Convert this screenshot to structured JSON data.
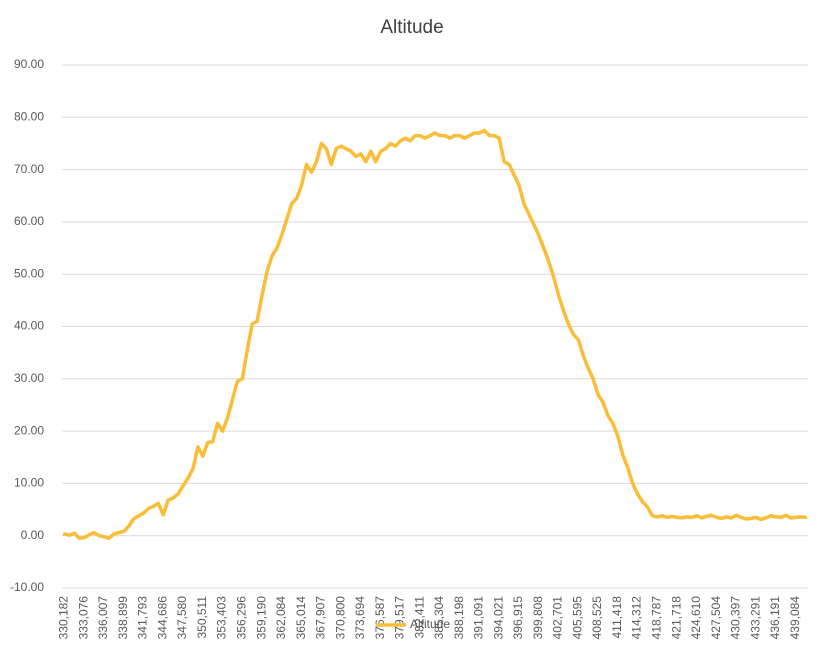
{
  "chart_data": {
    "type": "line",
    "title": "Altitude",
    "categories": [
      "330,182",
      null,
      null,
      null,
      "333,076",
      null,
      null,
      null,
      "336,007",
      null,
      null,
      null,
      "338,899",
      null,
      null,
      null,
      "341,793",
      null,
      null,
      null,
      "344,686",
      null,
      null,
      null,
      "347,580",
      null,
      null,
      null,
      "350,511",
      null,
      null,
      null,
      "353,403",
      null,
      null,
      null,
      "356,296",
      null,
      null,
      null,
      "359,190",
      null,
      null,
      null,
      "362,084",
      null,
      null,
      null,
      "365,014",
      null,
      null,
      null,
      "367,907",
      null,
      null,
      null,
      "370,800",
      null,
      null,
      null,
      "373,694",
      null,
      null,
      null,
      "376,587",
      null,
      null,
      null,
      "379,517",
      null,
      null,
      null,
      "382,411",
      null,
      null,
      null,
      "385,304",
      null,
      null,
      null,
      "388,198",
      null,
      null,
      null,
      "391,091",
      null,
      null,
      null,
      "394,021",
      null,
      null,
      null,
      "396,915",
      null,
      null,
      null,
      "399,808",
      null,
      null,
      null,
      "402,701",
      null,
      null,
      null,
      "405,595",
      null,
      null,
      null,
      "408,525",
      null,
      null,
      null,
      "411,418",
      null,
      null,
      null,
      "414,312",
      null,
      null,
      null,
      "418,787",
      null,
      null,
      null,
      "421,718",
      null,
      null,
      null,
      "424,610",
      null,
      null,
      null,
      "427,504",
      null,
      null,
      null,
      "430,397",
      null,
      null,
      null,
      "433,291",
      null,
      null,
      null,
      "436,191",
      null,
      null,
      null,
      "439,084",
      null,
      null
    ],
    "series": [
      {
        "name": "Altitude",
        "color": "#f9bd38",
        "values": [
          0.3,
          0.1,
          0.5,
          -0.5,
          -0.4,
          0.2,
          0.6,
          0.0,
          -0.2,
          -0.5,
          0.3,
          0.6,
          0.8,
          1.8,
          3.2,
          3.8,
          4.3,
          5.2,
          5.6,
          6.2,
          4.0,
          6.8,
          7.2,
          8.0,
          9.5,
          11.0,
          12.8,
          17.0,
          15.2,
          17.8,
          18.0,
          21.5,
          20.0,
          22.5,
          26.0,
          29.5,
          30.0,
          35.5,
          40.5,
          41.0,
          46.0,
          50.5,
          53.5,
          55.0,
          57.5,
          60.5,
          63.5,
          64.5,
          67.0,
          71.0,
          69.5,
          71.5,
          75.0,
          74.0,
          71.0,
          74.0,
          74.5,
          74.0,
          73.5,
          72.5,
          73.0,
          71.5,
          73.5,
          71.5,
          73.5,
          74.0,
          75.0,
          74.5,
          75.5,
          76.0,
          75.5,
          76.5,
          76.5,
          76.0,
          76.5,
          77.0,
          76.5,
          76.5,
          76.0,
          76.5,
          76.5,
          76.0,
          76.5,
          77.0,
          77.0,
          77.5,
          76.5,
          76.5,
          76.0,
          71.5,
          71.0,
          69.0,
          67.0,
          63.5,
          61.5,
          59.5,
          57.5,
          55.0,
          52.5,
          49.5,
          46.0,
          43.0,
          40.5,
          38.5,
          37.5,
          34.5,
          32.0,
          30.0,
          27.0,
          25.5,
          23.0,
          21.5,
          19.0,
          15.5,
          13.0,
          10.0,
          8.0,
          6.5,
          5.5,
          3.8,
          3.6,
          3.8,
          3.5,
          3.7,
          3.5,
          3.4,
          3.6,
          3.5,
          3.8,
          3.4,
          3.7,
          3.9,
          3.5,
          3.3,
          3.6,
          3.4,
          3.9,
          3.5,
          3.2,
          3.3,
          3.5,
          3.1,
          3.4,
          3.8,
          3.6,
          3.5,
          3.9,
          3.4,
          3.5,
          3.6,
          3.5
        ]
      }
    ],
    "ylim": [
      -10,
      90
    ],
    "yticks": [
      {
        "value": -10,
        "label": "-10.00"
      },
      {
        "value": 0,
        "label": "0.00"
      },
      {
        "value": 10,
        "label": "10.00"
      },
      {
        "value": 20,
        "label": "20.00"
      },
      {
        "value": 30,
        "label": "30.00"
      },
      {
        "value": 40,
        "label": "40.00"
      },
      {
        "value": 50,
        "label": "50.00"
      },
      {
        "value": 60,
        "label": "60.00"
      },
      {
        "value": 70,
        "label": "70.00"
      },
      {
        "value": 80,
        "label": "80.00"
      },
      {
        "value": 90,
        "label": "90.00"
      }
    ],
    "grid": true,
    "legend": "bottom"
  }
}
